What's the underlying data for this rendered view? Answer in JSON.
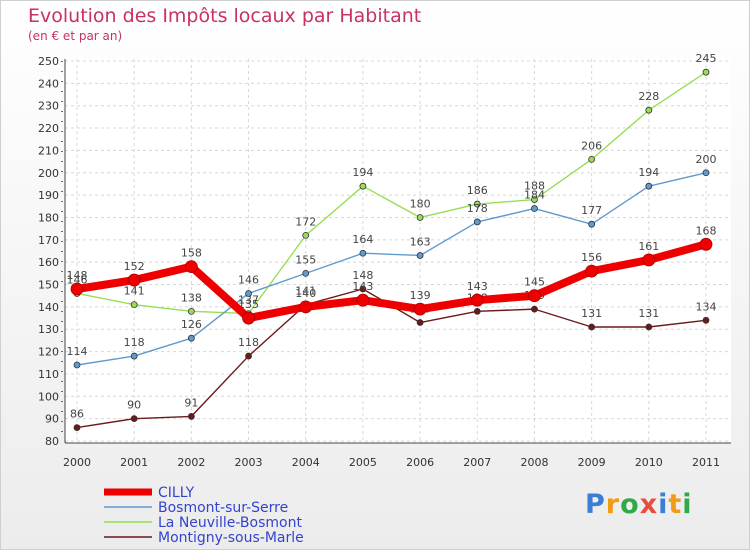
{
  "chart_data": {
    "type": "line",
    "title": "Evolution des Impôts locaux par Habitant",
    "subtitle": "(en € et par an)",
    "xlabel": "",
    "ylabel": "",
    "ylim": [
      80,
      250
    ],
    "y_ticks": [
      80,
      90,
      100,
      110,
      120,
      130,
      140,
      150,
      160,
      170,
      180,
      190,
      200,
      210,
      220,
      230,
      240,
      250
    ],
    "categories": [
      "2000",
      "2001",
      "2002",
      "2003",
      "2004",
      "2005",
      "2006",
      "2007",
      "2008",
      "2009",
      "2010",
      "2011"
    ],
    "series": [
      {
        "name": "Montigny-sous-Marle",
        "color": "#6b1a1a",
        "values": [
          86,
          90,
          91,
          118,
          141,
          148,
          133,
          138,
          139,
          131,
          131,
          134
        ]
      },
      {
        "name": "La Neuville-Bosmont",
        "color": "#99dd55",
        "values": [
          146,
          141,
          138,
          137,
          172,
          194,
          180,
          186,
          188,
          206,
          228,
          245
        ]
      },
      {
        "name": "Bosmont-sur-Serre",
        "color": "#5f9ad0",
        "values": [
          114,
          118,
          126,
          146,
          155,
          164,
          163,
          178,
          184,
          177,
          194,
          200
        ]
      },
      {
        "name": "CILLY",
        "color": "#ee0000",
        "values": [
          148,
          152,
          158,
          135,
          140,
          143,
          139,
          143,
          145,
          156,
          161,
          168
        ]
      }
    ],
    "legend": [
      "CILLY",
      "Bosmont-sur-Serre",
      "La Neuville-Bosmont",
      "Montigny-sous-Marle"
    ],
    "legend_position": "bottom-left"
  },
  "logo": {
    "letters": [
      "P",
      "r",
      "o",
      "x",
      "i",
      "t",
      "i"
    ],
    "colors": [
      "#3b7fd4",
      "#f39c12",
      "#2eaa4a",
      "#e74c3c",
      "#3b7fd4",
      "#f39c12",
      "#2eaa4a"
    ]
  }
}
